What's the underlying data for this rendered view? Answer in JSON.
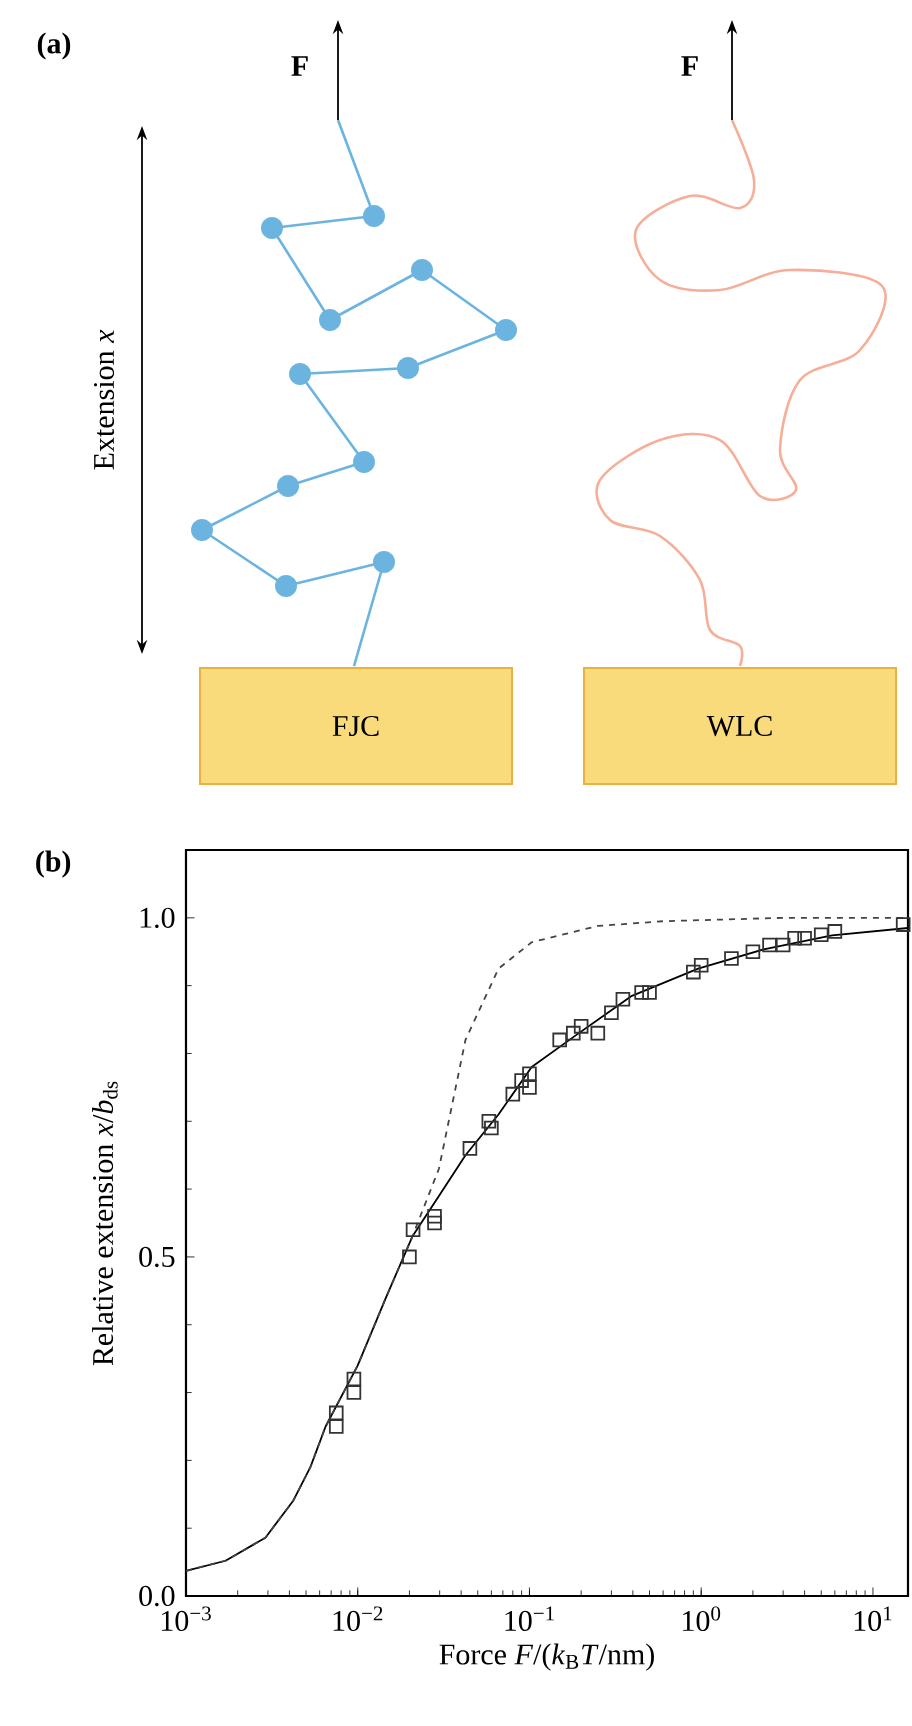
{
  "chart_data": [
    {
      "type": "other",
      "title": "(a)",
      "annotations": [
        "F",
        "F",
        "Extension *x*",
        "FJC",
        "WLC"
      ]
    },
    {
      "type": "line",
      "title": "(b)",
      "xlabel": "Force *F*/(*k*$_{B}$*T*/nm)",
      "ylabel": "Relative extension *x*/*b*$_{ds}$",
      "log": "x",
      "xlim": [
        0.001,
        16
      ],
      "ylim": [
        0,
        1.1
      ],
      "xticks": [
        {
          "value": 0.001,
          "label": "10$^{−3}$"
        },
        {
          "value": 0.01,
          "label": "10$^{−2}$"
        },
        {
          "value": 0.1,
          "label": "10$^{−1}$"
        },
        {
          "value": 1,
          "label": "10$^{0}$"
        },
        {
          "value": 10,
          "label": "10$^{1}$"
        }
      ],
      "yticks": [
        {
          "value": 0,
          "label": "0.0"
        },
        {
          "value": 0.5,
          "label": "0.5"
        },
        {
          "value": 1,
          "label": "1.0"
        }
      ],
      "series": [
        {
          "type": "line",
          "line_style": "solid",
          "color": "#000000",
          "x": [
            0.001,
            0.0017,
            0.0029,
            0.0042,
            0.0053,
            0.0065,
            0.01,
            0.0146,
            0.0208,
            0.0297,
            0.0424,
            0.066,
            0.103,
            0.194,
            0.395,
            0.96,
            2.35,
            5.78,
            16
          ],
          "values": [
            0.037,
            0.052,
            0.086,
            0.14,
            0.19,
            0.25,
            0.34,
            0.44,
            0.53,
            0.59,
            0.65,
            0.71,
            0.78,
            0.83,
            0.885,
            0.925,
            0.954,
            0.974,
            0.985
          ]
        },
        {
          "type": "line",
          "line_style": "dashed",
          "color": "#444444",
          "x": [
            0.001,
            0.0017,
            0.0029,
            0.0042,
            0.0053,
            0.0065,
            0.01,
            0.0146,
            0.0208,
            0.0297,
            0.0424,
            0.066,
            0.103,
            0.25,
            0.6,
            3,
            16
          ],
          "values": [
            0.037,
            0.052,
            0.086,
            0.14,
            0.19,
            0.25,
            0.34,
            0.44,
            0.53,
            0.63,
            0.82,
            0.925,
            0.964,
            0.988,
            0.995,
            1.0,
            1.0
          ]
        },
        {
          "type": "scatter",
          "marker": "square",
          "color": "#333333",
          "x": [
            0.0075,
            0.0075,
            0.0095,
            0.0095,
            0.02,
            0.021,
            0.028,
            0.028,
            0.045,
            0.058,
            0.06,
            0.08,
            0.09,
            0.1,
            0.1,
            0.15,
            0.18,
            0.2,
            0.25,
            0.3,
            0.35,
            0.45,
            0.5,
            0.9,
            1.0,
            1.5,
            2,
            2.5,
            3,
            3.5,
            4,
            5,
            6,
            15
          ],
          "values": [
            0.27,
            0.25,
            0.32,
            0.3,
            0.5,
            0.54,
            0.56,
            0.55,
            0.66,
            0.7,
            0.69,
            0.74,
            0.76,
            0.75,
            0.77,
            0.82,
            0.83,
            0.84,
            0.83,
            0.86,
            0.88,
            0.89,
            0.89,
            0.92,
            0.93,
            0.94,
            0.95,
            0.96,
            0.96,
            0.97,
            0.97,
            0.975,
            0.98,
            0.99
          ]
        }
      ]
    }
  ]
}
